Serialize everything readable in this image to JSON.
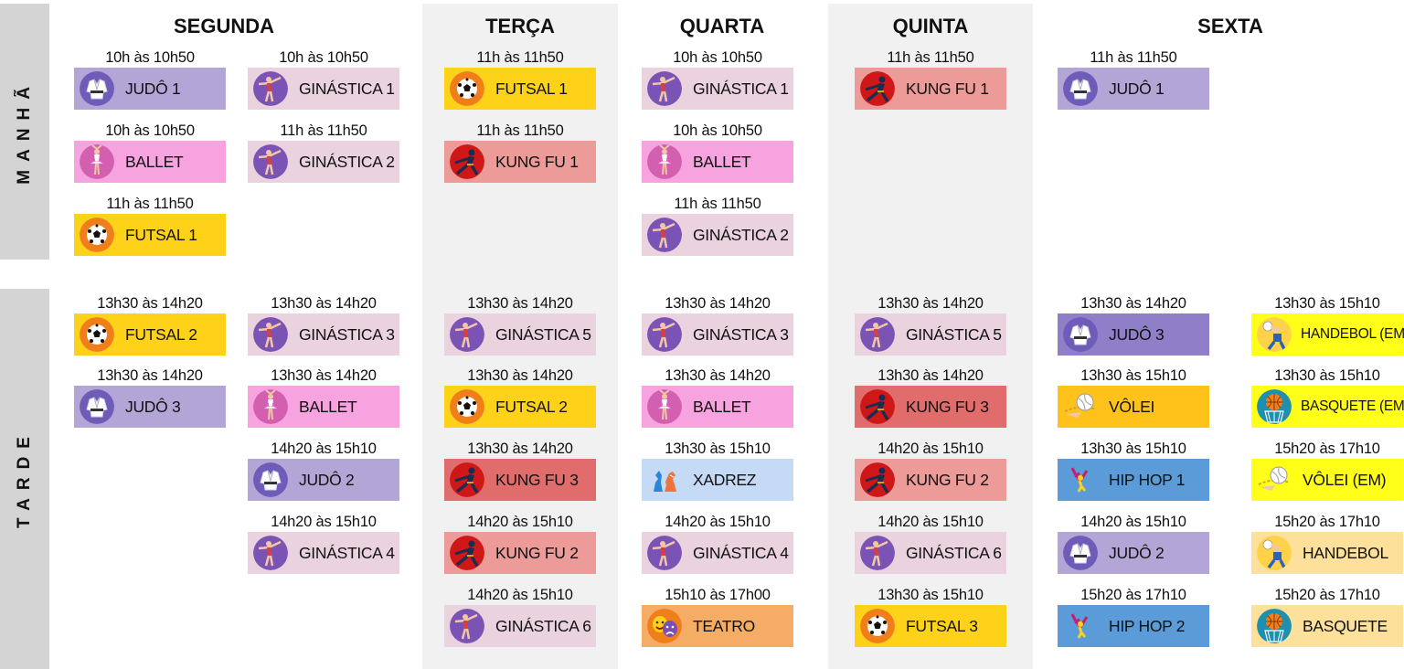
{
  "periods": {
    "morning": "MANHÃ",
    "afternoon": "TARDE"
  },
  "days": [
    "SEGUNDA",
    "TERÇA",
    "QUARTA",
    "QUINTA",
    "SEXTA"
  ],
  "activities": {
    "judo": {
      "color": "#b3a6d6",
      "icon": "judo-gi-icon"
    },
    "judo3": {
      "color": "#8f7fc9",
      "icon": "judo-gi-icon"
    },
    "ginastica": {
      "color": "#ead2df",
      "icon": "gymnast-icon"
    },
    "ballet": {
      "color": "#f7a3df",
      "icon": "ballerina-icon"
    },
    "futsal": {
      "color": "#ffd21a",
      "icon": "soccer-ball-icon"
    },
    "kungfu": {
      "color": "#ec9b98",
      "icon": "kung-fu-icon"
    },
    "kungfu3": {
      "color": "#e06c6c",
      "icon": "kung-fu-icon"
    },
    "xadrez": {
      "color": "#c5daf4",
      "icon": "chess-icon"
    },
    "teatro": {
      "color": "#f5ad66",
      "icon": "theater-masks-icon"
    },
    "volei": {
      "color": "#ffc21a",
      "icon": "volleyball-icon"
    },
    "hiphop": {
      "color": "#5a9bd8",
      "icon": "hip-hop-dancer-icon"
    },
    "handebol_em": {
      "color": "#ffff1a",
      "icon": "handball-icon"
    },
    "basquete_em": {
      "color": "#ffff1a",
      "icon": "basketball-icon"
    },
    "volei_em": {
      "color": "#ffff1a",
      "icon": "volleyball-icon"
    },
    "handebol": {
      "color": "#fde09a",
      "icon": "handball-icon"
    },
    "basquete": {
      "color": "#fde09a",
      "icon": "basketball-icon"
    }
  },
  "slots": [
    {
      "day": "SEGUNDA",
      "col": 0,
      "row": 0,
      "time": "10h às 10h50",
      "label": "JUDÔ 1",
      "act": "judo"
    },
    {
      "day": "SEGUNDA",
      "col": 1,
      "row": 0,
      "time": "10h às 10h50",
      "label": "GINÁSTICA 1",
      "act": "ginastica"
    },
    {
      "day": "SEGUNDA",
      "col": 0,
      "row": 1,
      "time": "10h às 10h50",
      "label": "BALLET",
      "act": "ballet"
    },
    {
      "day": "SEGUNDA",
      "col": 1,
      "row": 1,
      "time": "11h às 11h50",
      "label": "GINÁSTICA 2",
      "act": "ginastica"
    },
    {
      "day": "SEGUNDA",
      "col": 0,
      "row": 2,
      "time": "11h às 11h50",
      "label": "FUTSAL 1",
      "act": "futsal"
    },
    {
      "day": "TERÇA",
      "col": 2,
      "row": 0,
      "time": "11h às 11h50",
      "label": "FUTSAL 1",
      "act": "futsal"
    },
    {
      "day": "TERÇA",
      "col": 2,
      "row": 1,
      "time": "11h às 11h50",
      "label": "KUNG FU 1",
      "act": "kungfu"
    },
    {
      "day": "QUARTA",
      "col": 3,
      "row": 0,
      "time": "10h às 10h50",
      "label": "GINÁSTICA 1",
      "act": "ginastica"
    },
    {
      "day": "QUARTA",
      "col": 3,
      "row": 1,
      "time": "10h às 10h50",
      "label": "BALLET",
      "act": "ballet"
    },
    {
      "day": "QUARTA",
      "col": 3,
      "row": 2,
      "time": "11h às 11h50",
      "label": "GINÁSTICA 2",
      "act": "ginastica"
    },
    {
      "day": "QUINTA",
      "col": 4,
      "row": 0,
      "time": "11h às 11h50",
      "label": "KUNG FU 1",
      "act": "kungfu"
    },
    {
      "day": "SEXTA",
      "col": 5,
      "row": 0,
      "time": "11h às 11h50",
      "label": "JUDÔ 1",
      "act": "judo"
    },
    {
      "day": "SEGUNDA",
      "col": 0,
      "row": 3,
      "time": "13h30 às 14h20",
      "label": "FUTSAL 2",
      "act": "futsal"
    },
    {
      "day": "SEGUNDA",
      "col": 1,
      "row": 3,
      "time": "13h30 às 14h20",
      "label": "GINÁSTICA 3",
      "act": "ginastica"
    },
    {
      "day": "SEGUNDA",
      "col": 0,
      "row": 4,
      "time": "13h30 às 14h20",
      "label": "JUDÔ 3",
      "act": "judo"
    },
    {
      "day": "SEGUNDA",
      "col": 1,
      "row": 4,
      "time": "13h30 às 14h20",
      "label": "BALLET",
      "act": "ballet"
    },
    {
      "day": "SEGUNDA",
      "col": 1,
      "row": 5,
      "time": "14h20 às 15h10",
      "label": "JUDÔ 2",
      "act": "judo"
    },
    {
      "day": "SEGUNDA",
      "col": 1,
      "row": 6,
      "time": "14h20 às 15h10",
      "label": "GINÁSTICA 4",
      "act": "ginastica"
    },
    {
      "day": "TERÇA",
      "col": 2,
      "row": 3,
      "time": "13h30 às 14h20",
      "label": "GINÁSTICA 5",
      "act": "ginastica"
    },
    {
      "day": "TERÇA",
      "col": 2,
      "row": 4,
      "time": "13h30 às 14h20",
      "label": "FUTSAL 2",
      "act": "futsal"
    },
    {
      "day": "TERÇA",
      "col": 2,
      "row": 5,
      "time": "13h30 às 14h20",
      "label": "KUNG FU 3",
      "act": "kungfu3"
    },
    {
      "day": "TERÇA",
      "col": 2,
      "row": 6,
      "time": "14h20 às 15h10",
      "label": "KUNG FU 2",
      "act": "kungfu"
    },
    {
      "day": "TERÇA",
      "col": 2,
      "row": 7,
      "time": "14h20 às 15h10",
      "label": "GINÁSTICA 6",
      "act": "ginastica"
    },
    {
      "day": "QUARTA",
      "col": 3,
      "row": 3,
      "time": "13h30 às 14h20",
      "label": "GINÁSTICA 3",
      "act": "ginastica"
    },
    {
      "day": "QUARTA",
      "col": 3,
      "row": 4,
      "time": "13h30 às 14h20",
      "label": "BALLET",
      "act": "ballet"
    },
    {
      "day": "QUARTA",
      "col": 3,
      "row": 5,
      "time": "13h30 às 15h10",
      "label": "XADREZ",
      "act": "xadrez"
    },
    {
      "day": "QUARTA",
      "col": 3,
      "row": 6,
      "time": "14h20 às 15h10",
      "label": "GINÁSTICA 4",
      "act": "ginastica"
    },
    {
      "day": "QUARTA",
      "col": 3,
      "row": 7,
      "time": "15h10 às 17h00",
      "label": "TEATRO",
      "act": "teatro"
    },
    {
      "day": "QUINTA",
      "col": 4,
      "row": 3,
      "time": "13h30 às 14h20",
      "label": "GINÁSTICA 5",
      "act": "ginastica"
    },
    {
      "day": "QUINTA",
      "col": 4,
      "row": 4,
      "time": "13h30 às 14h20",
      "label": "KUNG FU 3",
      "act": "kungfu3"
    },
    {
      "day": "QUINTA",
      "col": 4,
      "row": 5,
      "time": "14h20 às 15h10",
      "label": "KUNG FU 2",
      "act": "kungfu"
    },
    {
      "day": "QUINTA",
      "col": 4,
      "row": 6,
      "time": "14h20 às 15h10",
      "label": "GINÁSTICA 6",
      "act": "ginastica"
    },
    {
      "day": "QUINTA",
      "col": 4,
      "row": 7,
      "time": "13h30 às 15h10",
      "label": "FUTSAL 3",
      "act": "futsal"
    },
    {
      "day": "SEXTA",
      "col": 5,
      "row": 3,
      "time": "13h30 às 14h20",
      "label": "JUDÔ 3",
      "act": "judo3"
    },
    {
      "day": "SEXTA",
      "col": 6,
      "row": 3,
      "time": "13h30 às 15h10",
      "label": "HANDEBOL (EM)",
      "act": "handebol_em"
    },
    {
      "day": "SEXTA",
      "col": 5,
      "row": 4,
      "time": "13h30 às 15h10",
      "label": "VÔLEI",
      "act": "volei"
    },
    {
      "day": "SEXTA",
      "col": 6,
      "row": 4,
      "time": "13h30 às 15h10",
      "label": "BASQUETE (EM)",
      "act": "basquete_em"
    },
    {
      "day": "SEXTA",
      "col": 5,
      "row": 5,
      "time": "13h30 às 15h10",
      "label": "HIP HOP 1",
      "act": "hiphop"
    },
    {
      "day": "SEXTA",
      "col": 6,
      "row": 5,
      "time": "15h20 às 17h10",
      "label": "VÔLEI (EM)",
      "act": "volei_em"
    },
    {
      "day": "SEXTA",
      "col": 5,
      "row": 6,
      "time": "14h20 às 15h10",
      "label": "JUDÔ 2",
      "act": "judo"
    },
    {
      "day": "SEXTA",
      "col": 6,
      "row": 6,
      "time": "15h20 às 17h10",
      "label": "HANDEBOL",
      "act": "handebol"
    },
    {
      "day": "SEXTA",
      "col": 5,
      "row": 7,
      "time": "15h20 às 17h10",
      "label": "HIP HOP 2",
      "act": "hiphop"
    },
    {
      "day": "SEXTA",
      "col": 6,
      "row": 7,
      "time": "15h20 às 17h10",
      "label": "BASQUETE",
      "act": "basquete"
    }
  ]
}
